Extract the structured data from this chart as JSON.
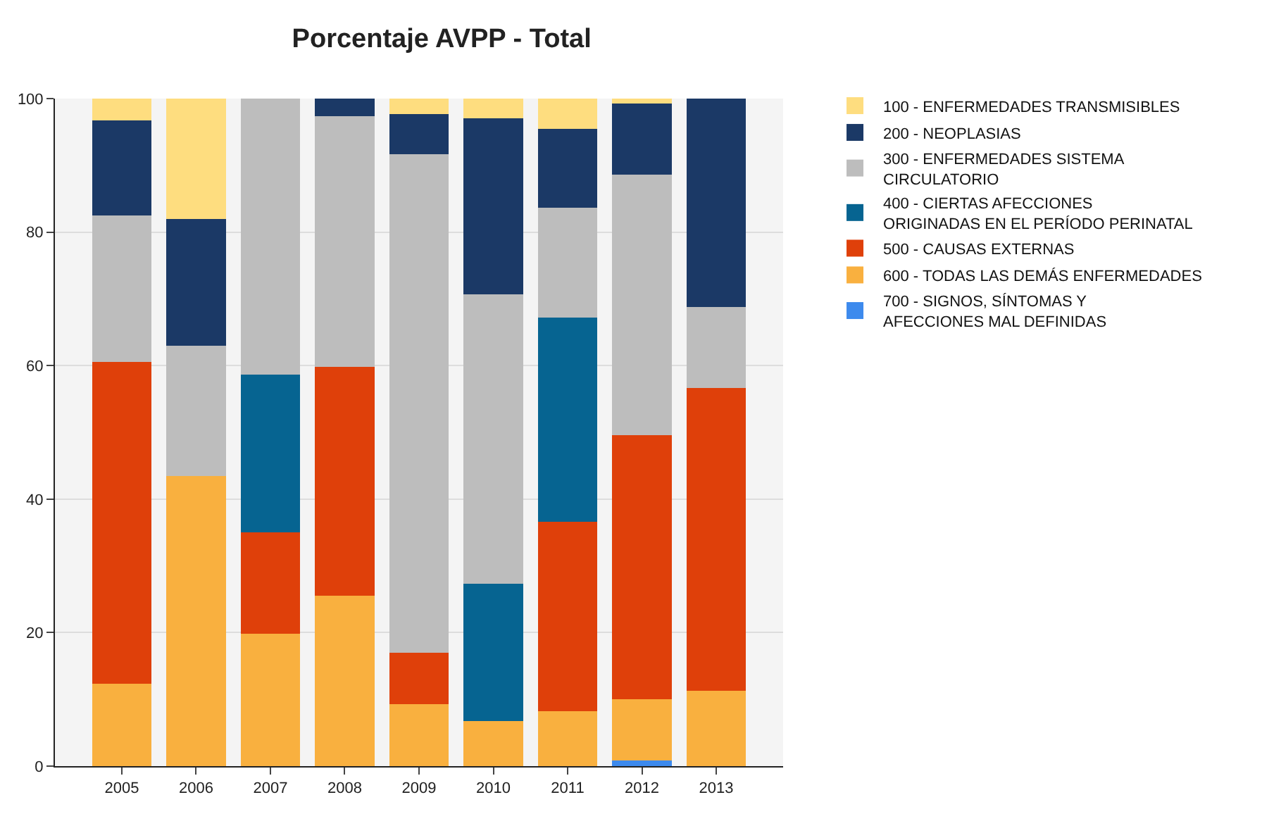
{
  "chart_data": {
    "type": "bar",
    "title": "Porcentaje AVPP - Total",
    "stacked": true,
    "categories": [
      "2005",
      "2006",
      "2007",
      "2008",
      "2009",
      "2010",
      "2011",
      "2012",
      "2013"
    ],
    "series": [
      {
        "name": "700 - SIGNOS, SÍNTOMAS Y AFECCIONES MAL DEFINIDAS",
        "color": "#3d8aed",
        "values": [
          0,
          0,
          0,
          0,
          0,
          0,
          0,
          0.8,
          0
        ]
      },
      {
        "name": "600 - TODAS LAS DEMÁS ENFERMEDADES",
        "color": "#f9b03f",
        "values": [
          12.3,
          43.5,
          19.8,
          25.5,
          9.3,
          6.7,
          8.2,
          9.2,
          11.3
        ]
      },
      {
        "name": "500 - CAUSAS EXTERNAS",
        "color": "#df400a",
        "values": [
          48.2,
          0,
          15.2,
          34.3,
          7.7,
          0,
          28.4,
          39.6,
          45.3
        ]
      },
      {
        "name": "400 - CIERTAS AFECCIONES ORIGINADAS EN EL PERÍODO PERINATAL",
        "color": "#066491",
        "values": [
          0,
          0,
          23.7,
          0,
          0,
          20.6,
          30.6,
          0,
          0
        ]
      },
      {
        "name": "300 - ENFERMEDADES SISTEMA CIRCULATORIO",
        "color": "#bdbdbd",
        "values": [
          22,
          19.5,
          41.3,
          37.6,
          74.7,
          43.4,
          16.4,
          39,
          12.2
        ]
      },
      {
        "name": "200 - NEOPLASIAS",
        "color": "#1b3966",
        "values": [
          14.2,
          19,
          0,
          2.6,
          6,
          26.3,
          11.9,
          10.7,
          31.2
        ]
      },
      {
        "name": "100 - ENFERMEDADES TRANSMISIBLES",
        "color": "#fedd7f",
        "values": [
          3.3,
          18,
          0,
          0,
          2.3,
          3,
          4.5,
          0.7,
          0
        ]
      }
    ],
    "ylim": [
      0,
      100
    ],
    "yticks": [
      0,
      20,
      40,
      60,
      80,
      100
    ],
    "grid": "y",
    "legend": "top right"
  }
}
